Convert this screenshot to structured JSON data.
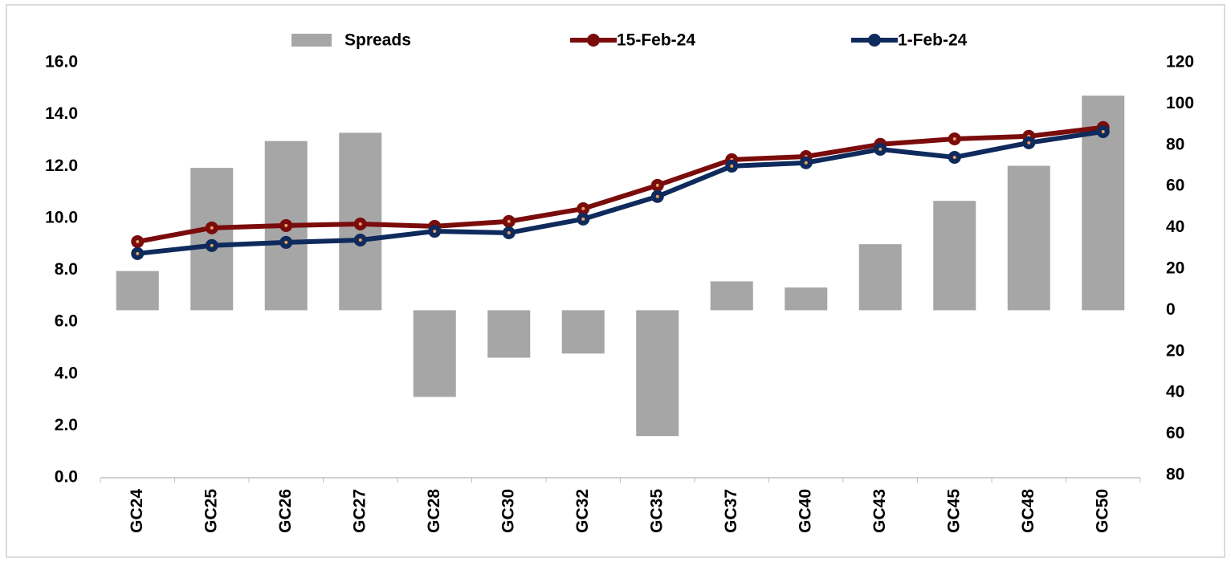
{
  "chart_data": {
    "type": "bar-line",
    "categories": [
      "GC24",
      "GC25",
      "GC26",
      "GC27",
      "GC28",
      "GC30",
      "GC32",
      "GC35",
      "GC37",
      "GC40",
      "GC43",
      "GC45",
      "GC48",
      "GC50"
    ],
    "series": [
      {
        "name": "Spreads",
        "type": "bar",
        "axis": "y2",
        "color": "#a6a6a6",
        "values": [
          19,
          69,
          82,
          86,
          -42,
          -23,
          -21,
          -61,
          14,
          11,
          32,
          53,
          70,
          104
        ]
      },
      {
        "name": "15-Feb-24",
        "type": "line",
        "color": "#7b0c0c",
        "values": [
          9.1,
          9.63,
          9.72,
          9.78,
          9.69,
          9.88,
          10.37,
          11.27,
          12.26,
          12.38,
          12.85,
          13.06,
          13.16,
          13.5
        ]
      },
      {
        "name": "1-Feb-24",
        "type": "line",
        "color": "#0f2a5c",
        "values": [
          8.64,
          8.95,
          9.07,
          9.16,
          9.5,
          9.44,
          9.97,
          10.84,
          12.01,
          12.14,
          12.66,
          12.35,
          12.91,
          13.34
        ]
      }
    ],
    "ylim": [
      0,
      16
    ],
    "yticks": [
      {
        "value": 0,
        "label": "0.0"
      },
      {
        "value": 2,
        "label": "2.0"
      },
      {
        "value": 4,
        "label": "4.0"
      },
      {
        "value": 6,
        "label": "6.0"
      },
      {
        "value": 8,
        "label": "8.0"
      },
      {
        "value": 10,
        "label": "10.0"
      },
      {
        "value": 12,
        "label": "12.0"
      },
      {
        "value": 14,
        "label": "14.0"
      },
      {
        "value": 16,
        "label": "16.0"
      }
    ],
    "y2lim": [
      -80,
      120
    ],
    "y2ticks": [
      {
        "value": -80,
        "label": "80"
      },
      {
        "value": -60,
        "label": "60"
      },
      {
        "value": -40,
        "label": "40"
      },
      {
        "value": -20,
        "label": "20"
      },
      0,
      20,
      40,
      60,
      80,
      100,
      120
    ],
    "negative_tick_color": "#ff0000",
    "legend": "top"
  }
}
